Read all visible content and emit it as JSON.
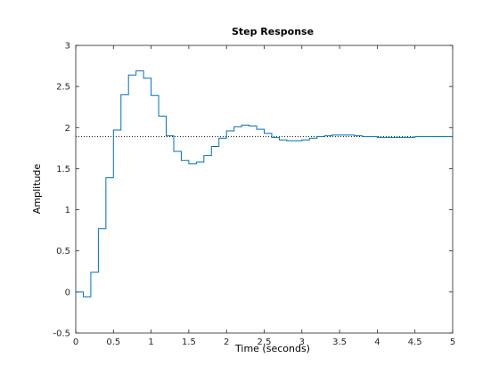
{
  "chart_data": {
    "type": "line",
    "title": "Step Response",
    "xlabel": "Time (seconds)",
    "ylabel": "Amplitude",
    "xlim": [
      0,
      5
    ],
    "ylim": [
      -0.5,
      3
    ],
    "x_ticks": [
      "0",
      "0.5",
      "1",
      "1.5",
      "2",
      "2.5",
      "3",
      "3.5",
      "4",
      "4.5",
      "5"
    ],
    "y_ticks": [
      "-0.5",
      "0",
      "0.5",
      "1",
      "1.5",
      "2",
      "2.5",
      "3"
    ],
    "grid": false,
    "step_style": "zero-order-hold",
    "series": [
      {
        "color": "#0072BD",
        "sample_time": 0.1,
        "x": [
          0.0,
          0.1,
          0.2,
          0.3,
          0.4,
          0.5,
          0.6,
          0.7,
          0.8,
          0.9,
          1.0,
          1.1,
          1.2,
          1.3,
          1.4,
          1.5,
          1.6,
          1.7,
          1.8,
          1.9,
          2.0,
          2.1,
          2.2,
          2.3,
          2.4,
          2.5,
          2.6,
          2.7,
          2.8,
          2.9,
          3.0,
          3.1,
          3.2,
          3.3,
          3.4,
          3.5,
          3.6,
          3.7,
          3.8,
          3.9,
          4.0,
          4.1,
          4.2,
          4.3,
          4.4,
          4.5,
          4.6,
          4.7,
          4.8,
          4.9
        ],
        "y": [
          0,
          -0.06,
          0.24,
          0.77,
          1.39,
          1.97,
          2.4,
          2.64,
          2.69,
          2.6,
          2.39,
          2.14,
          1.9,
          1.71,
          1.6,
          1.56,
          1.58,
          1.66,
          1.77,
          1.87,
          1.96,
          2.01,
          2.03,
          2.02,
          1.98,
          1.93,
          1.88,
          1.85,
          1.84,
          1.84,
          1.85,
          1.87,
          1.89,
          1.9,
          1.91,
          1.91,
          1.91,
          1.9,
          1.89,
          1.89,
          1.88,
          1.88,
          1.88,
          1.88,
          1.88,
          1.89,
          1.89,
          1.89,
          1.89,
          1.89
        ]
      }
    ],
    "final_value": 1.89,
    "final_value_style": "dotted",
    "final_value_color": "#000000"
  }
}
